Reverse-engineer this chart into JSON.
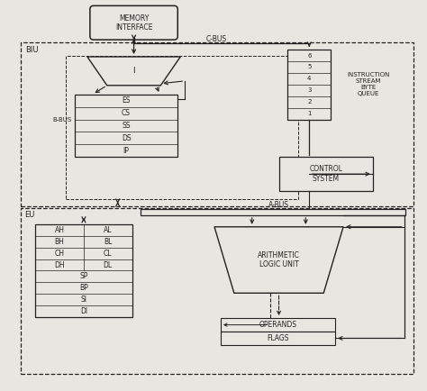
{
  "bg_color": "#e8e6e0",
  "line_color": "#222222",
  "box_fill": "#e8e6e0",
  "mem_title": "MEMORY\nINTERFACE",
  "biu_label": "BIU",
  "eu_label": "EU",
  "cbus_label": "C-BUS",
  "abus_label": "A-BUS",
  "bbus_label": "B-BUS",
  "sigma_label": "I",
  "segment_registers": [
    "ES",
    "CS",
    "SS",
    "DS",
    "IP"
  ],
  "queue_labels": [
    "6",
    "5",
    "4",
    "3",
    "2",
    "1"
  ],
  "queue_title": "INSTRUCTION\nSTREAM\nBYTE\nQUEUE",
  "control_label": "CONTROL\nSYSTEM",
  "alu_label": "ARITHMETIC\nLOGIC UNIT",
  "reg_rows": [
    [
      "AH",
      "AL"
    ],
    [
      "BH",
      "BL"
    ],
    [
      "CH",
      "CL"
    ],
    [
      "DH",
      "DL"
    ]
  ],
  "reg_single": [
    "SP",
    "BP",
    "SI",
    "DI"
  ],
  "operands_label": "OPERANDS",
  "flags_label": "FLAGS",
  "font_size": 5.5
}
